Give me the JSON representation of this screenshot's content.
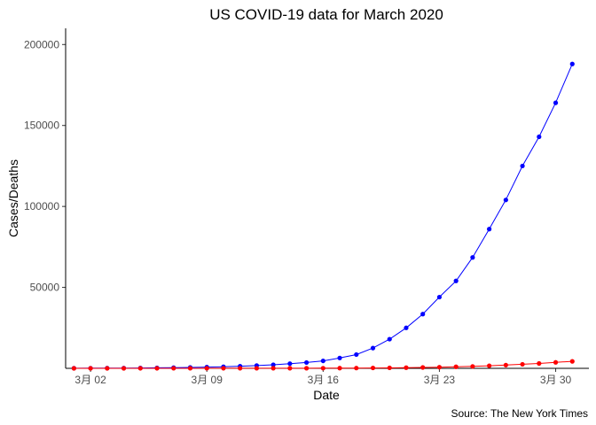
{
  "chart_data": {
    "type": "line",
    "title": "US COVID-19 data for March 2020",
    "xlabel": "Date",
    "ylabel": "Cases/Deaths",
    "caption": "Source: The New York Times",
    "x": [
      1,
      2,
      3,
      4,
      5,
      6,
      7,
      8,
      9,
      10,
      11,
      12,
      13,
      14,
      15,
      16,
      17,
      18,
      19,
      20,
      21,
      22,
      23,
      24,
      25,
      26,
      27,
      28,
      29,
      30,
      31
    ],
    "x_ticks": [
      {
        "day": 2,
        "label": "3月 02"
      },
      {
        "day": 9,
        "label": "3月 09"
      },
      {
        "day": 16,
        "label": "3月 16"
      },
      {
        "day": 23,
        "label": "3月 23"
      },
      {
        "day": 30,
        "label": "3月 30"
      }
    ],
    "y_ticks": [
      50000,
      100000,
      150000,
      200000
    ],
    "ylim": [
      0,
      210000
    ],
    "xlim": [
      0.5,
      32
    ],
    "grid": false,
    "series": [
      {
        "color": "#0000ff",
        "values": [
          80,
          100,
          130,
          160,
          220,
          320,
          440,
          550,
          750,
          1000,
          1300,
          1700,
          2200,
          2900,
          3600,
          4600,
          6400,
          8500,
          12500,
          18000,
          25000,
          33500,
          44000,
          54000,
          68500,
          86000,
          104000,
          125000,
          143000,
          164000,
          188000
        ]
      },
      {
        "color": "#ff0000",
        "values": [
          0,
          5,
          10,
          12,
          15,
          18,
          22,
          25,
          30,
          35,
          40,
          45,
          55,
          65,
          80,
          100,
          130,
          170,
          230,
          300,
          420,
          550,
          700,
          950,
          1200,
          1600,
          2000,
          2500,
          3000,
          3700,
          4300
        ]
      }
    ]
  }
}
